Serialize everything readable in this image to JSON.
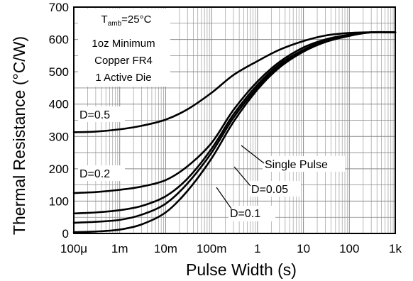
{
  "chart_data": {
    "type": "line",
    "title": "",
    "xlabel": "Pulse Width (s)",
    "ylabel": "Thermal Resistance (°C/W)",
    "xscale": "log",
    "xlim": [
      0.0001,
      1000
    ],
    "ylim": [
      0,
      700
    ],
    "grid": true,
    "x_ticks": [
      {
        "value": 0.0001,
        "label": "100μ"
      },
      {
        "value": 0.001,
        "label": "1m"
      },
      {
        "value": 0.01,
        "label": "10m"
      },
      {
        "value": 0.1,
        "label": "100m"
      },
      {
        "value": 1,
        "label": "1"
      },
      {
        "value": 10,
        "label": "10"
      },
      {
        "value": 100,
        "label": "100"
      },
      {
        "value": 1000,
        "label": "1k"
      }
    ],
    "y_ticks": [
      {
        "value": 0,
        "label": "0"
      },
      {
        "value": 100,
        "label": "100"
      },
      {
        "value": 200,
        "label": "200"
      },
      {
        "value": 300,
        "label": "300"
      },
      {
        "value": 400,
        "label": "400"
      },
      {
        "value": 500,
        "label": "500"
      },
      {
        "value": 600,
        "label": "600"
      },
      {
        "value": 700,
        "label": "700"
      }
    ],
    "conditions": {
      "tamb_symbol": "T",
      "tamb_subscript": "amb",
      "tamb_value": "=25°C",
      "line2": "1oz Minimum",
      "line3": "Copper FR4",
      "line4": "1 Active Die"
    },
    "series": [
      {
        "name": "D=0.5",
        "x": [
          0.0001,
          0.0003,
          0.001,
          0.003,
          0.01,
          0.03,
          0.1,
          0.3,
          1,
          3,
          10,
          30,
          100,
          300,
          1000
        ],
        "y": [
          313,
          315,
          322,
          333,
          352,
          384,
          435,
          490,
          533,
          568,
          595,
          612,
          620,
          622,
          622
        ]
      },
      {
        "name": "D=0.2",
        "x": [
          0.0001,
          0.0003,
          0.001,
          0.003,
          0.01,
          0.03,
          0.1,
          0.3,
          1,
          3,
          10,
          30,
          100,
          300,
          1000
        ],
        "y": [
          125,
          128,
          135,
          145,
          165,
          208,
          280,
          382,
          470,
          530,
          575,
          600,
          615,
          622,
          622
        ]
      },
      {
        "name": "D=0.1",
        "x": [
          0.0001,
          0.0003,
          0.001,
          0.003,
          0.01,
          0.03,
          0.1,
          0.3,
          1,
          3,
          10,
          30,
          100,
          300,
          1000
        ],
        "y": [
          62,
          65,
          72,
          85,
          115,
          170,
          262,
          368,
          460,
          523,
          568,
          596,
          613,
          622,
          622
        ]
      },
      {
        "name": "D=0.05",
        "x": [
          0.0001,
          0.0003,
          0.001,
          0.003,
          0.01,
          0.03,
          0.1,
          0.3,
          1,
          3,
          10,
          30,
          100,
          300,
          1000
        ],
        "y": [
          33,
          36,
          42,
          58,
          92,
          155,
          250,
          358,
          452,
          518,
          565,
          594,
          612,
          622,
          622
        ]
      },
      {
        "name": "Single Pulse",
        "x": [
          0.0001,
          0.0003,
          0.001,
          0.003,
          0.01,
          0.03,
          0.1,
          0.3,
          1,
          3,
          10,
          30,
          100,
          300,
          1000
        ],
        "y": [
          4,
          6,
          12,
          28,
          65,
          132,
          232,
          345,
          445,
          513,
          562,
          592,
          611,
          622,
          622
        ]
      }
    ],
    "annotations": [
      {
        "text": "D=0.5",
        "series": "D=0.5"
      },
      {
        "text": "D=0.2",
        "series": "D=0.2"
      },
      {
        "text": "Single Pulse",
        "series": "Single Pulse"
      },
      {
        "text": "D=0.05",
        "series": "D=0.05"
      },
      {
        "text": "D=0.1",
        "series": "D=0.1"
      }
    ]
  }
}
